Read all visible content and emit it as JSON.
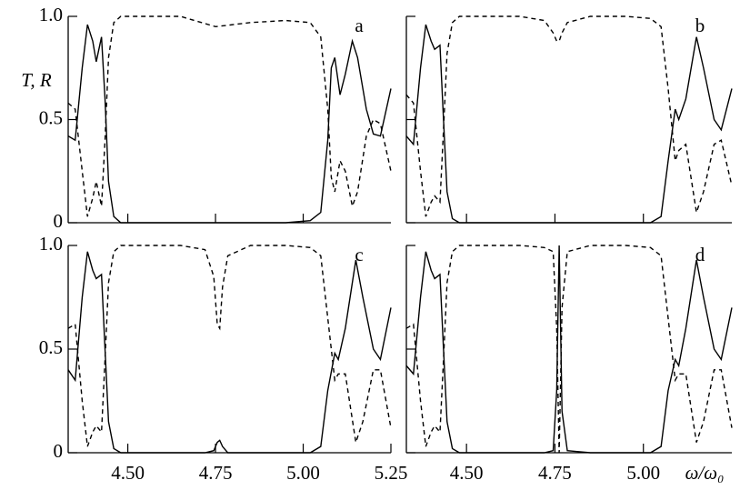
{
  "chart_data": [
    {
      "type": "line",
      "label": "a",
      "ylabel": "T, R",
      "show_xtick_labels": false,
      "show_ytick_labels": true,
      "x": [
        4.33,
        4.35,
        4.37,
        4.385,
        4.4,
        4.41,
        4.425,
        4.435,
        4.445,
        4.46,
        4.48,
        4.55,
        4.65,
        4.75,
        4.85,
        4.95,
        5.02,
        5.05,
        5.07,
        5.08,
        5.09,
        5.105,
        5.12,
        5.14,
        5.155,
        5.18,
        5.2,
        5.22,
        5.25
      ],
      "series": [
        {
          "color": "#000000",
          "style": "solid",
          "values": [
            0.42,
            0.4,
            0.75,
            0.96,
            0.88,
            0.78,
            0.9,
            0.6,
            0.2,
            0.03,
            0,
            0,
            0,
            0,
            0,
            0,
            0.01,
            0.05,
            0.4,
            0.75,
            0.8,
            0.62,
            0.72,
            0.88,
            0.8,
            0.55,
            0.43,
            0.42,
            0.65
          ]
        },
        {
          "color": "#000000",
          "style": "dashed",
          "values": [
            0.58,
            0.55,
            0.25,
            0.03,
            0.12,
            0.2,
            0.08,
            0.4,
            0.8,
            0.97,
            1,
            1,
            1,
            0.95,
            0.97,
            0.98,
            0.97,
            0.9,
            0.55,
            0.22,
            0.15,
            0.3,
            0.25,
            0.08,
            0.15,
            0.42,
            0.5,
            0.48,
            0.25
          ]
        }
      ],
      "xlim": [
        4.33,
        5.25
      ],
      "xticks": [
        4.5,
        4.75,
        5.0
      ],
      "ylim": [
        0,
        1
      ],
      "yticks": [
        0,
        0.5,
        {
          "value": 1,
          "label": "1.0"
        }
      ]
    },
    {
      "type": "line",
      "label": "b",
      "show_xtick_labels": false,
      "show_ytick_labels": false,
      "x": [
        4.33,
        4.35,
        4.37,
        4.385,
        4.4,
        4.41,
        4.425,
        4.435,
        4.445,
        4.46,
        4.48,
        4.55,
        4.65,
        4.72,
        4.745,
        4.755,
        4.762,
        4.77,
        4.785,
        4.85,
        4.95,
        5.02,
        5.05,
        5.07,
        5.09,
        5.1,
        5.12,
        5.15,
        5.17,
        5.2,
        5.22,
        5.25
      ],
      "series": [
        {
          "color": "#000000",
          "style": "solid",
          "values": [
            0.42,
            0.38,
            0.75,
            0.96,
            0.88,
            0.84,
            0.86,
            0.5,
            0.15,
            0.02,
            0,
            0,
            0,
            0,
            0,
            0,
            0,
            0,
            0,
            0,
            0,
            0,
            0.03,
            0.3,
            0.55,
            0.5,
            0.6,
            0.9,
            0.75,
            0.5,
            0.45,
            0.65
          ]
        },
        {
          "color": "#000000",
          "style": "dashed",
          "values": [
            0.62,
            0.58,
            0.25,
            0.03,
            0.1,
            0.13,
            0.1,
            0.45,
            0.82,
            0.97,
            1,
            1,
            1,
            0.98,
            0.92,
            0.88,
            0.88,
            0.92,
            0.97,
            1,
            1,
            0.99,
            0.95,
            0.65,
            0.3,
            0.35,
            0.38,
            0.05,
            0.15,
            0.38,
            0.4,
            0.18
          ]
        }
      ],
      "xlim": [
        4.33,
        5.25
      ],
      "xticks": [
        4.5,
        4.75,
        5.0
      ],
      "ylim": [
        0,
        1
      ],
      "yticks": [
        0,
        0.5,
        {
          "value": 1,
          "label": "1.0"
        }
      ]
    },
    {
      "type": "line",
      "label": "c",
      "show_xtick_labels": true,
      "show_ytick_labels": true,
      "x": [
        4.33,
        4.35,
        4.37,
        4.385,
        4.4,
        4.41,
        4.425,
        4.435,
        4.445,
        4.46,
        4.48,
        4.55,
        4.65,
        4.72,
        4.745,
        4.755,
        4.762,
        4.77,
        4.785,
        4.85,
        4.95,
        5.02,
        5.05,
        5.07,
        5.09,
        5.1,
        5.12,
        5.15,
        5.17,
        5.2,
        5.22,
        5.25
      ],
      "series": [
        {
          "color": "#000000",
          "style": "solid",
          "values": [
            0.4,
            0.35,
            0.75,
            0.97,
            0.88,
            0.84,
            0.86,
            0.5,
            0.15,
            0.02,
            0,
            0,
            0,
            0,
            0.01,
            0.05,
            0.06,
            0.03,
            0,
            0,
            0,
            0,
            0.03,
            0.3,
            0.48,
            0.45,
            0.6,
            0.93,
            0.75,
            0.5,
            0.45,
            0.7
          ]
        },
        {
          "color": "#000000",
          "style": "dashed",
          "values": [
            0.6,
            0.62,
            0.25,
            0.03,
            0.1,
            0.13,
            0.1,
            0.45,
            0.82,
            0.97,
            1,
            1,
            1,
            0.98,
            0.85,
            0.62,
            0.6,
            0.8,
            0.95,
            1,
            1,
            0.99,
            0.95,
            0.65,
            0.35,
            0.38,
            0.38,
            0.05,
            0.15,
            0.4,
            0.4,
            0.12
          ]
        }
      ],
      "xlim": [
        4.33,
        5.25
      ],
      "xticks": [
        {
          "value": 4.5,
          "label": "4.50"
        },
        4.75,
        {
          "value": 5,
          "label": "5.00"
        },
        5.25
      ],
      "ylim": [
        0,
        1
      ],
      "yticks": [
        0,
        0.5,
        {
          "value": 1,
          "label": "1.0"
        }
      ]
    },
    {
      "type": "line",
      "label": "d",
      "xlabel": "ω/ω₀",
      "show_xtick_labels": true,
      "show_ytick_labels": false,
      "x": [
        4.33,
        4.35,
        4.37,
        4.385,
        4.4,
        4.41,
        4.425,
        4.435,
        4.445,
        4.46,
        4.48,
        4.55,
        4.65,
        4.72,
        4.745,
        4.755,
        4.762,
        4.77,
        4.785,
        4.85,
        4.95,
        5.02,
        5.05,
        5.07,
        5.09,
        5.1,
        5.12,
        5.15,
        5.17,
        5.2,
        5.22,
        5.25
      ],
      "series": [
        {
          "color": "#000000",
          "style": "solid",
          "values": [
            0.42,
            0.38,
            0.75,
            0.97,
            0.88,
            0.84,
            0.86,
            0.5,
            0.15,
            0.02,
            0,
            0,
            0,
            0,
            0.01,
            0.3,
            1,
            0.2,
            0.01,
            0,
            0,
            0,
            0.03,
            0.3,
            0.45,
            0.42,
            0.6,
            0.93,
            0.75,
            0.5,
            0.45,
            0.7
          ]
        },
        {
          "color": "#000000",
          "style": "dashed",
          "values": [
            0.6,
            0.62,
            0.25,
            0.03,
            0.1,
            0.13,
            0.1,
            0.45,
            0.82,
            0.97,
            1,
            1,
            1,
            0.99,
            0.97,
            0.6,
            0,
            0.7,
            0.97,
            1,
            1,
            0.99,
            0.95,
            0.65,
            0.35,
            0.38,
            0.38,
            0.05,
            0.15,
            0.4,
            0.4,
            0.12
          ]
        }
      ],
      "xlim": [
        4.33,
        5.25
      ],
      "xticks": [
        {
          "value": 4.5,
          "label": "4.50"
        },
        4.75,
        {
          "value": 5,
          "label": "5.00"
        }
      ],
      "ylim": [
        0,
        1
      ],
      "yticks": [
        0,
        0.5,
        {
          "value": 1,
          "label": "1.0"
        }
      ]
    }
  ]
}
